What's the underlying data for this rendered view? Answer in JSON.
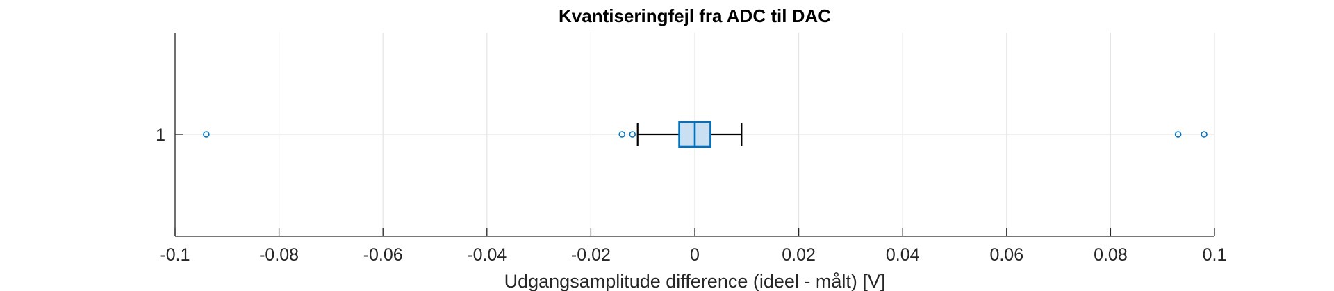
{
  "chart_data": {
    "type": "boxplot",
    "orientation": "horizontal",
    "title": "Kvantiseringfejl fra ADC til DAC",
    "xlabel": "Udgangsamplitude difference (ideel - målt) [V]",
    "ylabel": "",
    "xlim": [
      -0.1,
      0.1
    ],
    "xticks": [
      -0.1,
      -0.08,
      -0.06,
      -0.04,
      -0.02,
      0,
      0.02,
      0.04,
      0.06,
      0.08,
      0.1
    ],
    "xtick_labels": [
      "-0.1",
      "-0.08",
      "-0.06",
      "-0.04",
      "-0.02",
      "0",
      "0.02",
      "0.04",
      "0.06",
      "0.08",
      "0.1"
    ],
    "categories": [
      "1"
    ],
    "boxes": [
      {
        "category": "1",
        "whisker_low": -0.011,
        "q1": -0.003,
        "median": 0.0,
        "q3": 0.003,
        "whisker_high": 0.009,
        "outliers": [
          -0.094,
          -0.014,
          -0.012,
          0.093,
          0.098
        ]
      }
    ],
    "grid": true,
    "colors": {
      "box_edge": "#0072BD",
      "box_fill": "#C9DFF2",
      "whisker": "#000000",
      "outlier": "#0072BD",
      "grid": "#E5E5E5",
      "axis": "#262626"
    }
  }
}
